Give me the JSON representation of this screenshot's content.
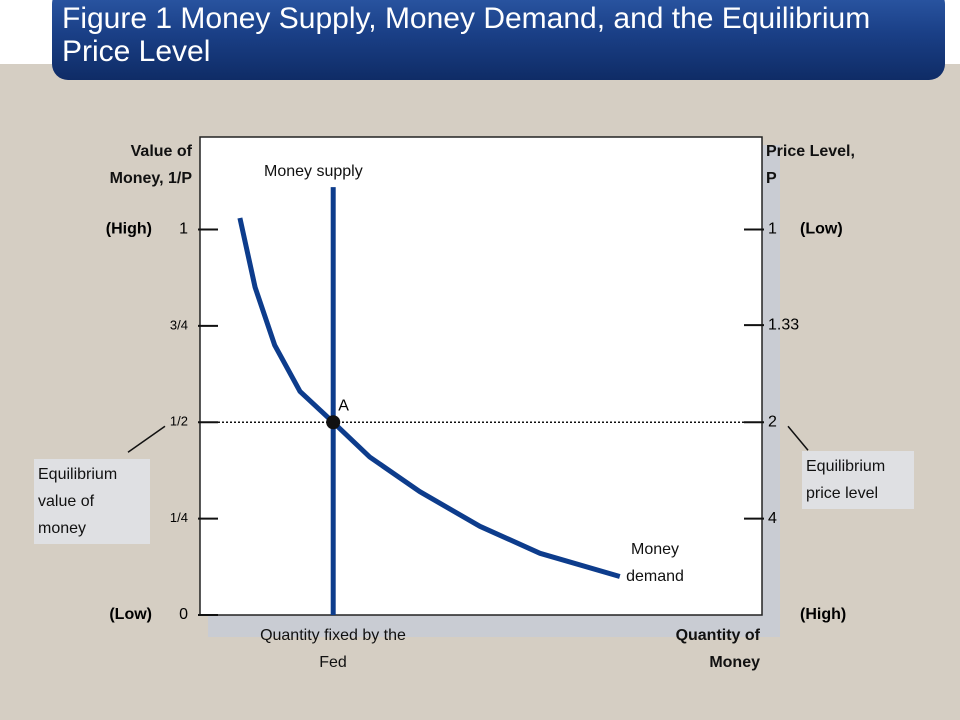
{
  "chart_data": {
    "type": "line",
    "title": "Figure 1 Money Supply, Money Demand, and the Equilibrium Price Level",
    "y_label": "Value of Money, 1/P",
    "y2_label": "Price Level, P",
    "x_label": "Quantity of Money",
    "y_end_labels": [
      "(Low)",
      "(High)"
    ],
    "y2_end_labels": [
      "(High)",
      "(Low)"
    ],
    "xlim": [
      0,
      100
    ],
    "ylim": [
      0,
      1.24
    ],
    "yticks": [
      0,
      {
        "value": 0.25,
        "label": "1/4"
      },
      {
        "value": 0.5,
        "label": "1/2"
      },
      {
        "value": 0.75,
        "label": "3/4"
      },
      1
    ],
    "y2scale": "reciprocal",
    "y2ticks": [
      1,
      1.33,
      2,
      4
    ],
    "series": [
      {
        "name": "Money supply",
        "color": "#0d3c8c",
        "x": [
          23.7,
          23.7
        ],
        "values": [
          0,
          1.11
        ]
      },
      {
        "name": "Money demand",
        "color": "#0d3c8c",
        "x": [
          7.1,
          9.8,
          13.3,
          17.8,
          23.7,
          30.2,
          39.1,
          49.8,
          60.5,
          74.7
        ],
        "values": [
          1.03,
          0.85,
          0.7,
          0.58,
          0.5,
          0.41,
          0.32,
          0.23,
          0.16,
          0.1
        ]
      }
    ],
    "equilibrium": {
      "label": "A",
      "x": 23.7,
      "value": 0.5
    },
    "annotations": [
      "Quantity fixed by the Fed",
      "Equilibrium value of money",
      "Equilibrium price level"
    ]
  }
}
